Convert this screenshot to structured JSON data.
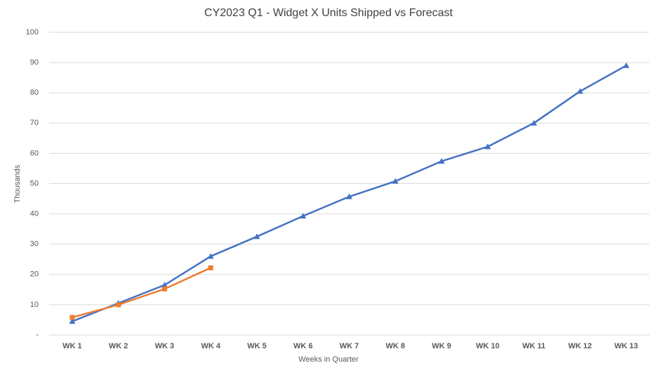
{
  "chart_data": {
    "type": "line",
    "title": "CY2023 Q1 - Widget X Units Shipped vs Forecast",
    "x_label": "Weeks in Quarter",
    "y_label": "Thousands",
    "categories": [
      "WK 1",
      "WK 2",
      "WK 3",
      "WK 4",
      "WK 5",
      "WK 6",
      "WK 7",
      "WK 8",
      "WK 9",
      "WK 10",
      "WK 11",
      "WK 12",
      "WK 13"
    ],
    "series": [
      {
        "color": "#4472c4",
        "marker": "triangle",
        "values": [
          4.5,
          10.5,
          16.5,
          26,
          32.5,
          39.3,
          45.7,
          50.8,
          57.4,
          62.2,
          70,
          80.5,
          89
        ]
      },
      {
        "color": "#ed7d31",
        "marker": "square",
        "values": [
          5.8,
          10,
          15.2,
          22.2,
          null,
          null,
          null,
          null,
          null,
          null,
          null,
          null,
          null
        ]
      }
    ],
    "ylim": [
      0,
      100
    ],
    "yticks": [
      {
        "value": 0,
        "label": "-"
      },
      10,
      20,
      30,
      40,
      50,
      60,
      70,
      80,
      90,
      100
    ],
    "grid": true
  }
}
